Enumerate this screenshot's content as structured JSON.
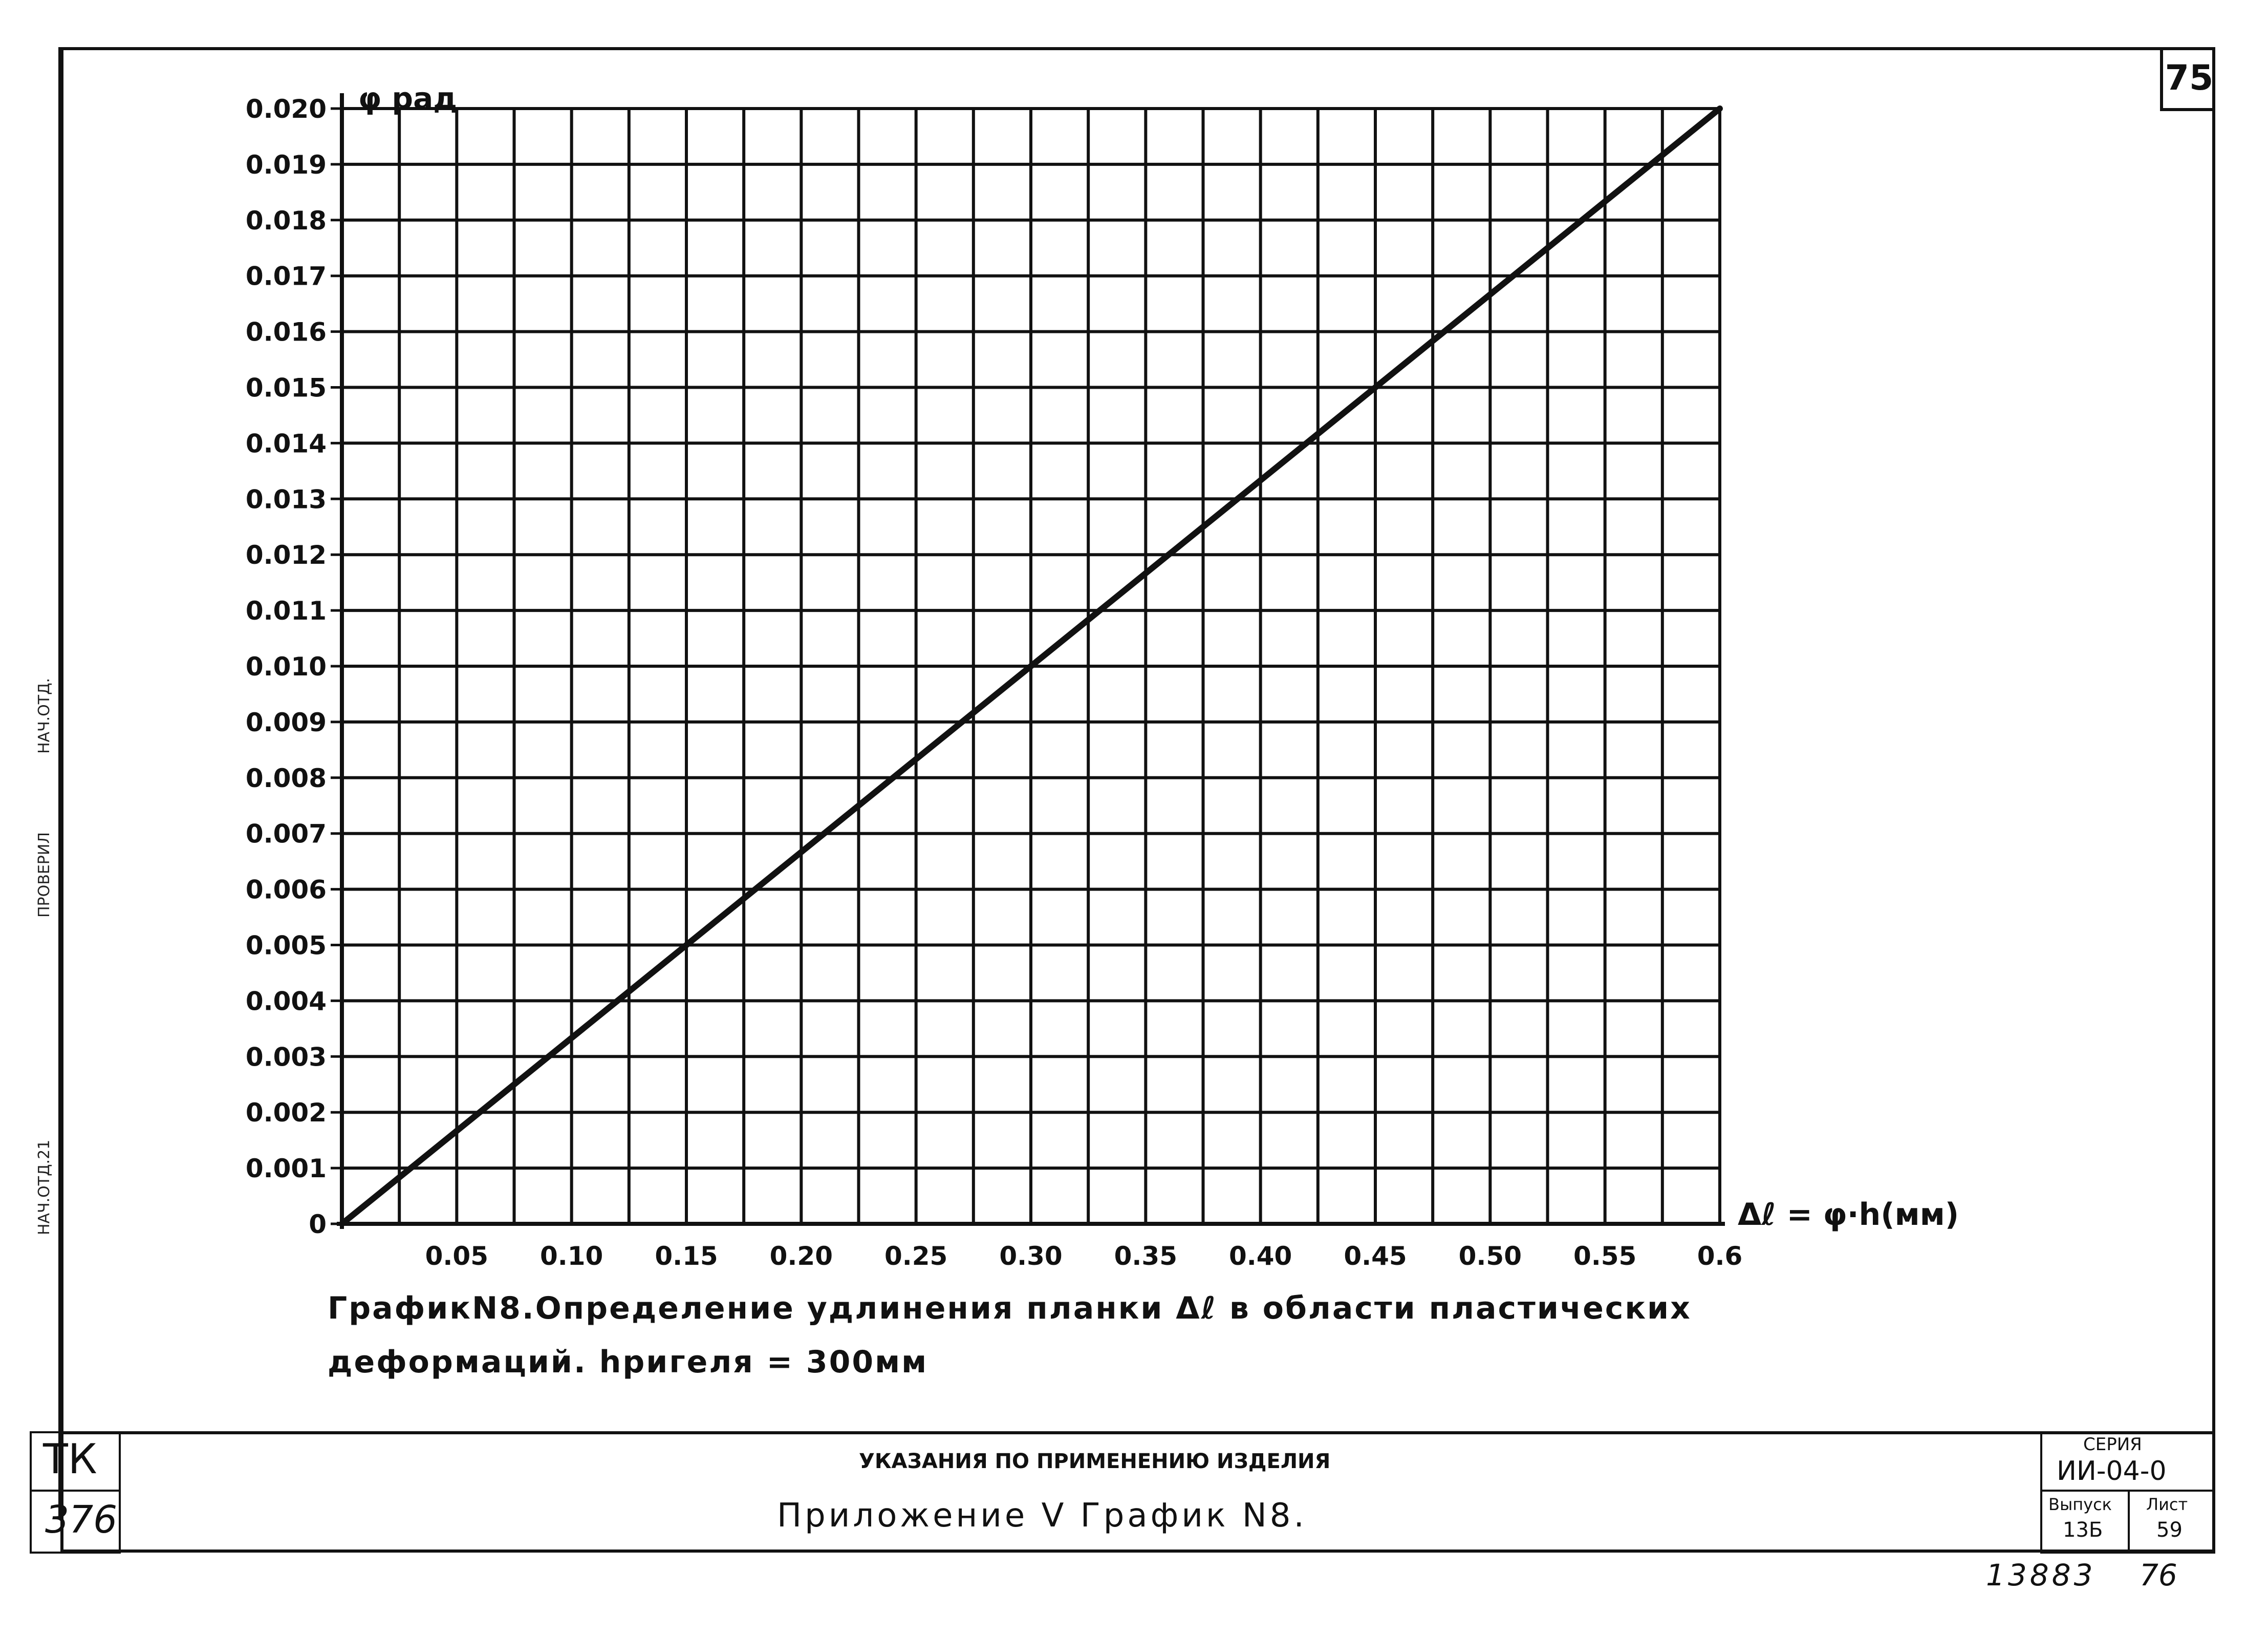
{
  "page": {
    "number": "75",
    "bottom_note": "13883",
    "bottom_note2": "76"
  },
  "binding": {
    "labels": [
      "ПРОВЕРИЛ",
      "НАЧ.ОТД.",
      "НАЧ.ОТД.21"
    ]
  },
  "caption": {
    "line1": "ГрафикN8.Определение удлинения планки Δℓ в области пластических",
    "line2": "деформаций. hригеля = 300мм"
  },
  "title_block": {
    "left_code_top": "ТК",
    "left_code_bottom": "376",
    "subtitle": "УКАЗАНИЯ ПО ПРИМЕНЕНИЮ ИЗДЕЛИЯ",
    "title": "Приложение V   График N8.",
    "series_label": "СЕРИЯ",
    "series_value": "ИИ-04-0",
    "issue_label": "Выпуск",
    "issue_value": "13Б",
    "sheet_label": "Лист",
    "sheet_value": "59"
  },
  "chart_data": {
    "type": "line",
    "title": "",
    "xlabel": "Δℓ = φ·h(мм)",
    "ylabel": "φ рад",
    "xlim": [
      0,
      0.6
    ],
    "ylim": [
      0,
      0.02
    ],
    "grid": true,
    "x_ticks": [
      0.05,
      0.1,
      0.15,
      0.2,
      0.25,
      0.3,
      0.35,
      0.4,
      0.45,
      0.5,
      0.55,
      0.6
    ],
    "x_tick_labels": [
      "0.05",
      "0.10",
      "0.15",
      "0.20",
      "0.25",
      "0.30",
      "0.35",
      "0.40",
      "0.45",
      "0.50",
      "0.55",
      "0.6"
    ],
    "y_ticks": [
      0,
      0.001,
      0.002,
      0.003,
      0.004,
      0.005,
      0.006,
      0.007,
      0.008,
      0.009,
      0.01,
      0.011,
      0.012,
      0.013,
      0.014,
      0.015,
      0.016,
      0.017,
      0.018,
      0.019,
      0.02
    ],
    "y_tick_labels": [
      "0",
      "0.001",
      "0.002",
      "0.003",
      "0.004",
      "0.005",
      "0.006",
      "0.007",
      "0.008",
      "0.009",
      "0.010",
      "0.011",
      "0.012",
      "0.013",
      "0.014",
      "0.015",
      "0.016",
      "0.017",
      "0.018",
      "0.019",
      "0.020"
    ],
    "series": [
      {
        "x": [
          0,
          0.6
        ],
        "y": [
          0,
          0.02
        ]
      }
    ],
    "line_color": "#111111"
  }
}
